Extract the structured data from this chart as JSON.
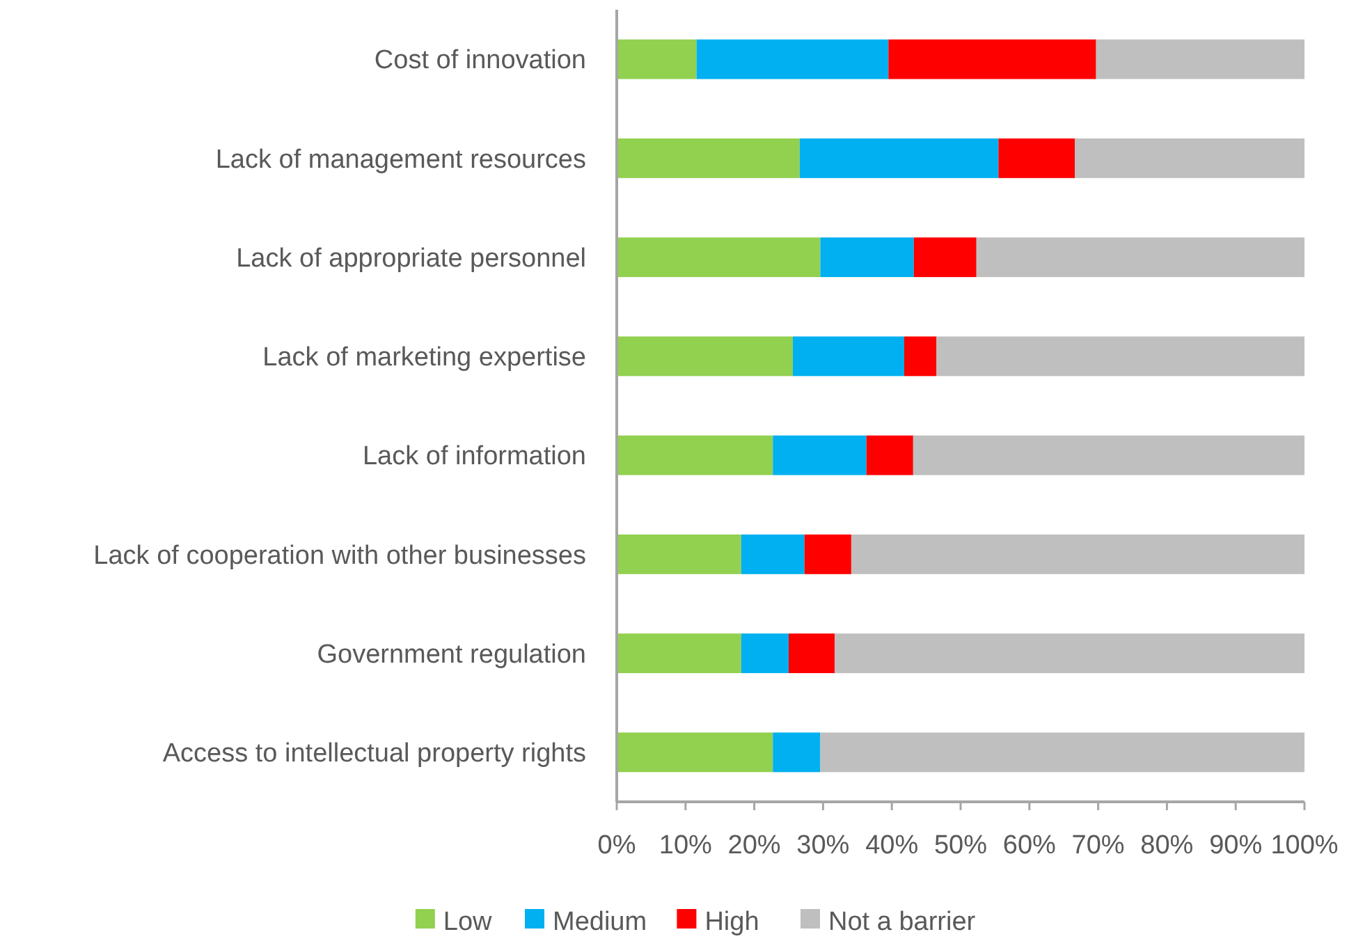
{
  "chart_data": {
    "type": "bar",
    "orientation": "horizontal",
    "stacked": true,
    "categories": [
      "Cost of innovation",
      "Lack of management resources",
      "Lack of appropriate personnel",
      "Lack of marketing expertise",
      "Lack of information",
      "Lack of cooperation with other businesses",
      "Government regulation",
      "Access to intellectual property rights"
    ],
    "series": [
      {
        "name": "Low",
        "color": "#92d050",
        "values": [
          11.6,
          26.6,
          29.6,
          25.6,
          22.7,
          18.1,
          18.1,
          22.7
        ]
      },
      {
        "name": "Medium",
        "color": "#00b0f0",
        "values": [
          27.9,
          28.9,
          13.6,
          16.2,
          13.6,
          9.2,
          6.9,
          6.9
        ]
      },
      {
        "name": "High",
        "color": "#ff0000",
        "values": [
          30.2,
          11.1,
          9.1,
          4.7,
          6.8,
          6.8,
          6.7,
          0
        ]
      },
      {
        "name": "Not a barrier",
        "color": "#bfbfbf",
        "values": [
          30.3,
          33.4,
          47.7,
          53.5,
          56.9,
          65.9,
          68.3,
          70.4
        ]
      }
    ],
    "xlim": [
      0,
      100
    ],
    "xticks": [
      {
        "value": 0,
        "label": "0%"
      },
      {
        "value": 10,
        "label": "10%"
      },
      {
        "value": 20,
        "label": "20%"
      },
      {
        "value": 30,
        "label": "30%"
      },
      {
        "value": 40,
        "label": "40%"
      },
      {
        "value": 50,
        "label": "50%"
      },
      {
        "value": 60,
        "label": "60%"
      },
      {
        "value": 70,
        "label": "70%"
      },
      {
        "value": 80,
        "label": "80%"
      },
      {
        "value": 90,
        "label": "90%"
      },
      {
        "value": 100,
        "label": "100%"
      }
    ],
    "grid": false,
    "legend": "bottom"
  }
}
